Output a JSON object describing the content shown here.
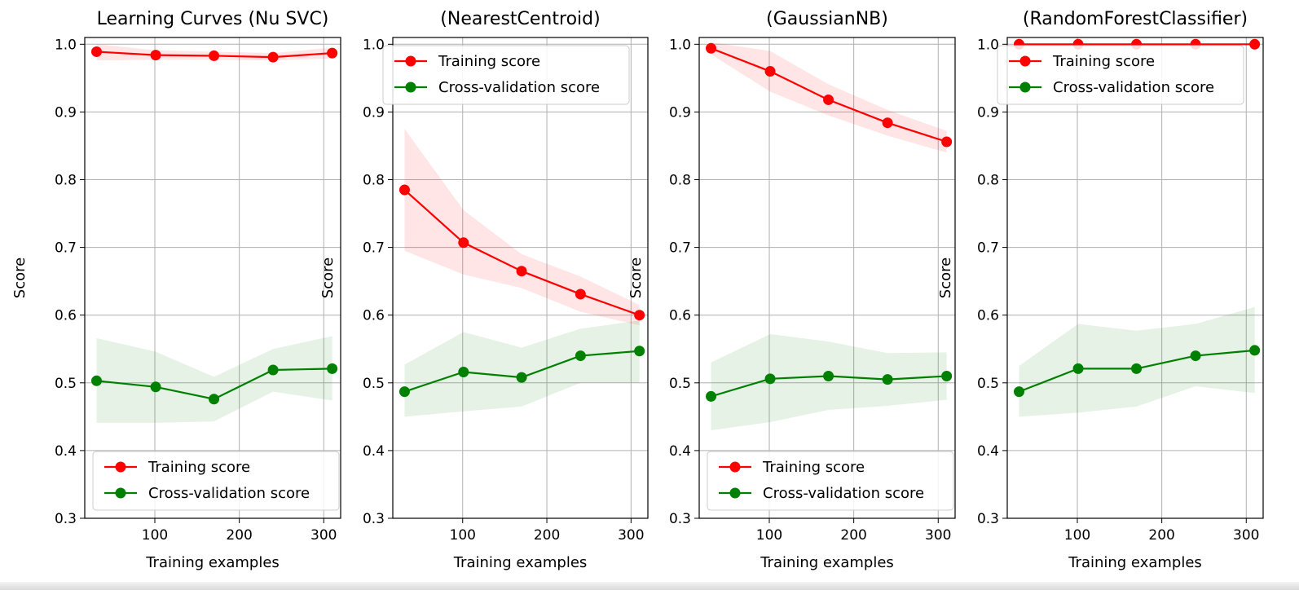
{
  "colors": {
    "training": "#ff0000",
    "cross_validation": "#008000",
    "grid": "#b0b0b0",
    "axis": "#000000"
  },
  "chart_data": [
    {
      "type": "line",
      "title": "Learning Curves (Nu SVC)",
      "xlabel": "Training examples",
      "ylabel": "Score",
      "xlim": [
        17,
        320
      ],
      "ylim": [
        0.3,
        1.01
      ],
      "xticks": [
        100,
        200,
        300
      ],
      "yticks": [
        0.3,
        0.4,
        0.5,
        0.6,
        0.7,
        0.8,
        0.9,
        1.0
      ],
      "grid": true,
      "legend": "lower right",
      "x": [
        31,
        101,
        170,
        240,
        310
      ],
      "series": [
        {
          "name": "Training score",
          "color": "#ff0000",
          "values": [
            0.989,
            0.984,
            0.983,
            0.981,
            0.987
          ],
          "band_lower": [
            0.976,
            0.977,
            0.977,
            0.976,
            0.979
          ],
          "band_upper": [
            1.0,
            0.991,
            0.989,
            0.987,
            0.995
          ]
        },
        {
          "name": "Cross-validation score",
          "color": "#008000",
          "values": [
            0.503,
            0.494,
            0.476,
            0.519,
            0.521
          ],
          "band_lower": [
            0.441,
            0.441,
            0.443,
            0.487,
            0.474
          ],
          "band_upper": [
            0.566,
            0.546,
            0.509,
            0.55,
            0.569
          ]
        }
      ]
    },
    {
      "type": "line",
      "title": "(NearestCentroid)",
      "xlabel": "Training examples",
      "ylabel": "Score",
      "xlim": [
        17,
        320
      ],
      "ylim": [
        0.3,
        1.01
      ],
      "xticks": [
        100,
        200,
        300
      ],
      "yticks": [
        0.3,
        0.4,
        0.5,
        0.6,
        0.7,
        0.8,
        0.9,
        1.0
      ],
      "grid": true,
      "legend": "upper left",
      "x": [
        31,
        101,
        170,
        240,
        310
      ],
      "series": [
        {
          "name": "Training score",
          "color": "#ff0000",
          "values": [
            0.785,
            0.707,
            0.665,
            0.631,
            0.6
          ],
          "band_lower": [
            0.695,
            0.66,
            0.64,
            0.605,
            0.585
          ],
          "band_upper": [
            0.875,
            0.755,
            0.69,
            0.657,
            0.615
          ]
        },
        {
          "name": "Cross-validation score",
          "color": "#008000",
          "values": [
            0.487,
            0.516,
            0.508,
            0.54,
            0.547
          ],
          "band_lower": [
            0.45,
            0.458,
            0.465,
            0.5,
            0.5
          ],
          "band_upper": [
            0.527,
            0.575,
            0.552,
            0.58,
            0.592
          ]
        }
      ]
    },
    {
      "type": "line",
      "title": "(GaussianNB)",
      "xlabel": "Training examples",
      "ylabel": "Score",
      "xlim": [
        17,
        320
      ],
      "ylim": [
        0.3,
        1.01
      ],
      "xticks": [
        100,
        200,
        300
      ],
      "yticks": [
        0.3,
        0.4,
        0.5,
        0.6,
        0.7,
        0.8,
        0.9,
        1.0
      ],
      "grid": true,
      "legend": "lower right",
      "x": [
        31,
        101,
        170,
        240,
        310
      ],
      "series": [
        {
          "name": "Training score",
          "color": "#ff0000",
          "values": [
            0.994,
            0.96,
            0.918,
            0.884,
            0.856
          ],
          "band_lower": [
            0.985,
            0.93,
            0.895,
            0.865,
            0.84
          ],
          "band_upper": [
            1.003,
            0.99,
            0.941,
            0.903,
            0.872
          ]
        },
        {
          "name": "Cross-validation score",
          "color": "#008000",
          "values": [
            0.48,
            0.506,
            0.51,
            0.505,
            0.51
          ],
          "band_lower": [
            0.43,
            0.442,
            0.46,
            0.466,
            0.475
          ],
          "band_upper": [
            0.53,
            0.572,
            0.561,
            0.544,
            0.545
          ]
        }
      ]
    },
    {
      "type": "line",
      "title": "(RandomForestClassifier)",
      "xlabel": "Training examples",
      "ylabel": "Score",
      "xlim": [
        17,
        320
      ],
      "ylim": [
        0.3,
        1.01
      ],
      "xticks": [
        100,
        200,
        300
      ],
      "yticks": [
        0.3,
        0.4,
        0.5,
        0.6,
        0.7,
        0.8,
        0.9,
        1.0
      ],
      "grid": true,
      "legend": "upper left",
      "x": [
        31,
        101,
        170,
        240,
        310
      ],
      "series": [
        {
          "name": "Training score",
          "color": "#ff0000",
          "values": [
            1.0,
            1.0,
            1.0,
            1.0,
            1.0
          ],
          "band_lower": [
            1.0,
            1.0,
            1.0,
            1.0,
            1.0
          ],
          "band_upper": [
            1.0,
            1.0,
            1.0,
            1.0,
            1.0
          ]
        },
        {
          "name": "Cross-validation score",
          "color": "#008000",
          "values": [
            0.487,
            0.521,
            0.521,
            0.54,
            0.548
          ],
          "band_lower": [
            0.45,
            0.456,
            0.465,
            0.495,
            0.485
          ],
          "band_upper": [
            0.525,
            0.587,
            0.577,
            0.587,
            0.612
          ]
        }
      ]
    }
  ]
}
